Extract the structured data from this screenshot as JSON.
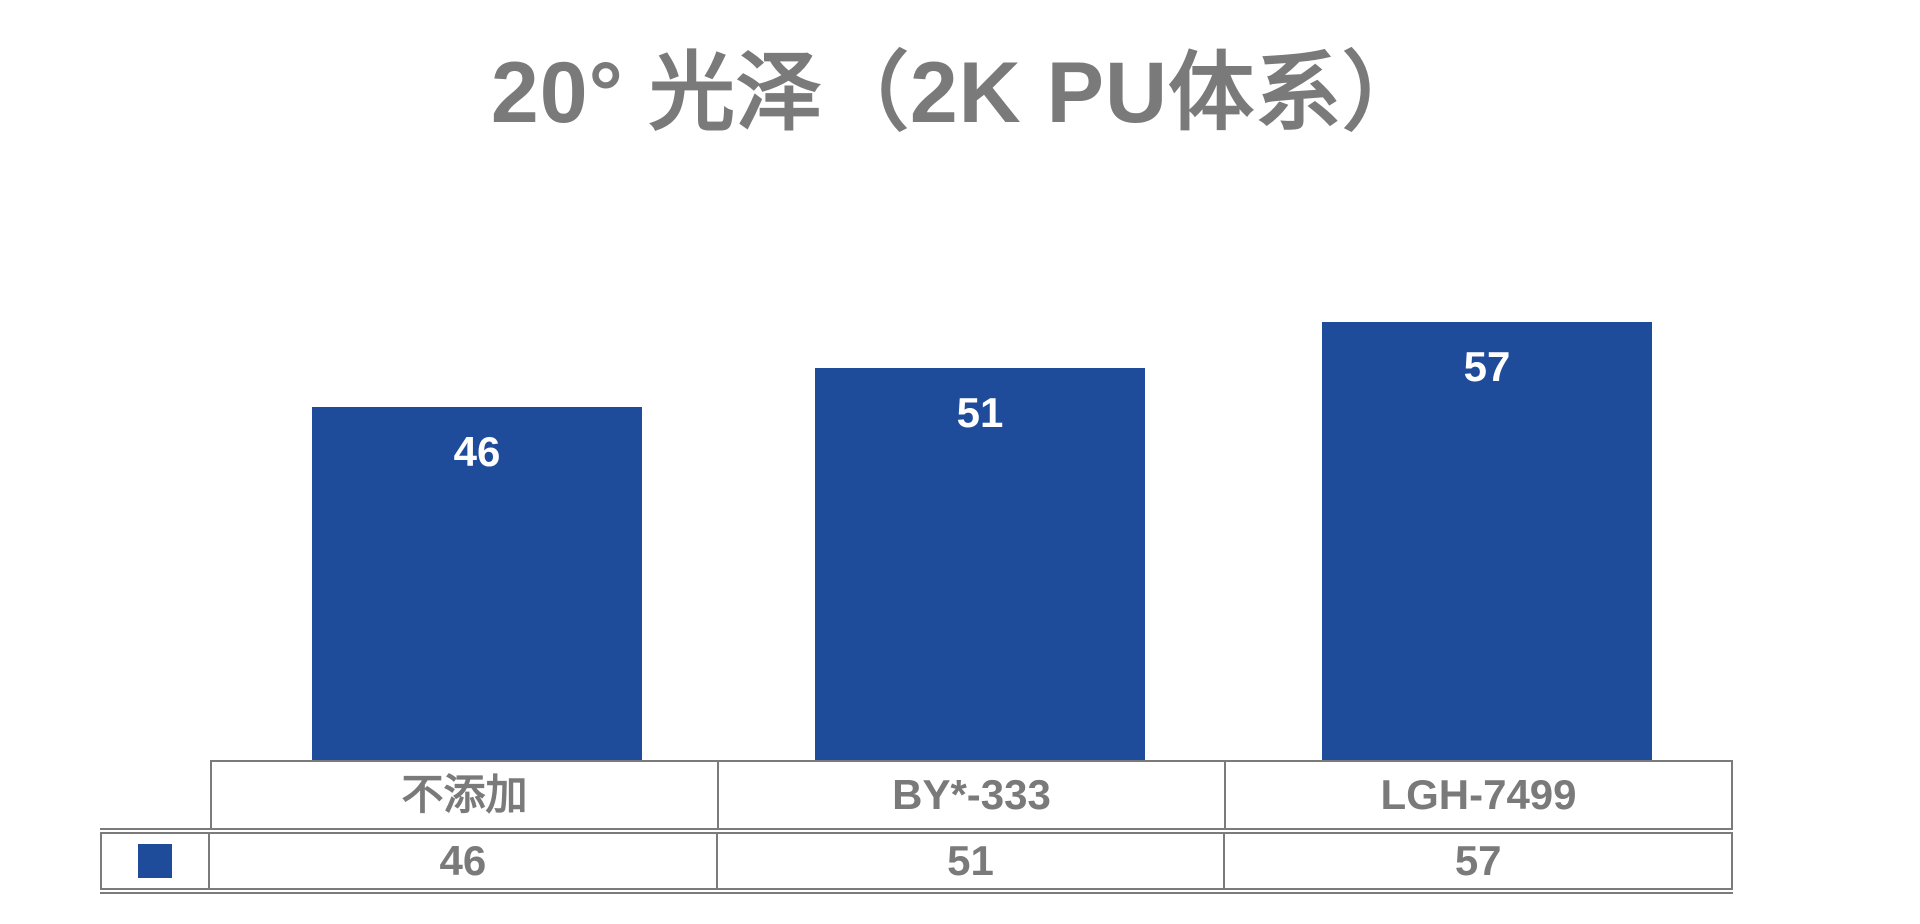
{
  "title": "20° 光泽（2K PU体系）",
  "colors": {
    "bar_blue": "#1F4B9B",
    "text_gray": "#7A7A7A",
    "border_gray": "#7B7B7B",
    "bar_label_white": "#FFFFFF"
  },
  "chart_data": {
    "type": "bar",
    "title": "20° 光泽（2K PU体系）",
    "categories": [
      "不添加",
      "BY*-333",
      "LGH-7499"
    ],
    "values": [
      46,
      51,
      57
    ],
    "data_labels": [
      "46",
      "51",
      "57"
    ],
    "xlabel": "",
    "ylabel": "",
    "ylim": [
      0,
      65
    ],
    "gridlines": false,
    "axes_visible": false,
    "series_color": "#1F4B9B",
    "legend": {
      "style": "color swatch only, no text",
      "position": "data-table bottom-left cell"
    },
    "data_table": {
      "category_row": [
        "不添加",
        "BY*-333",
        "LGH-7499"
      ],
      "value_row": [
        "46",
        "51",
        "57"
      ]
    }
  }
}
